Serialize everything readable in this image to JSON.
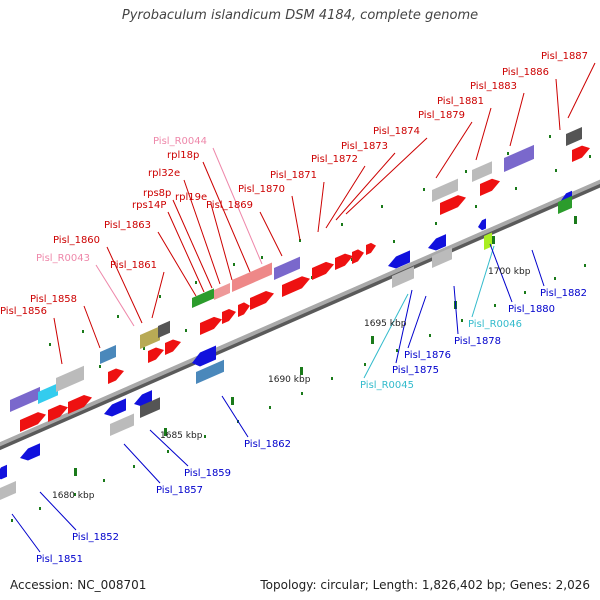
{
  "title": "Pyrobaculum islandicum DSM 4184, complete genome",
  "footer": {
    "accession": "Accession: NC_008701",
    "summary": "Topology: circular; Length: 1,826,402 bp; Genes: 2,026"
  },
  "colors": {
    "backbone": "#8f8f8f",
    "forward_label": "#cc0000",
    "reverse_label": "#0000cc",
    "rna_forward_label": "#ee88aa",
    "rna_reverse_label": "#33bbcc",
    "cds_forward": "#ee1111",
    "cds_reverse": "#1111dd",
    "pseudo_gray": "#bbbbbb",
    "dark_gray": "#555555",
    "tick": "#1a7a1a"
  },
  "scale_ticks": [
    "1680 kbp",
    "1685 kbp",
    "1690 kbp",
    "1695 kbp",
    "1700 kbp"
  ],
  "labels_top": [
    "Pisl_1856",
    "Pisl_1858",
    "Pisl_R0043",
    "Pisl_1860",
    "Pisl_1861",
    "Pisl_1863",
    "rps14P",
    "rps8p",
    "rpl32e",
    "rpl19e",
    "rpl18p",
    "Pisl_R0044",
    "Pisl_1869",
    "Pisl_1870",
    "Pisl_1871",
    "Pisl_1872",
    "Pisl_1873",
    "Pisl_1874",
    "Pisl_1879",
    "Pisl_1881",
    "Pisl_1883",
    "Pisl_1886",
    "Pisl_1887"
  ],
  "labels_bottom": [
    "Pisl_1851",
    "Pisl_1852",
    "Pisl_1857",
    "Pisl_1859",
    "Pisl_1862",
    "Pisl_R0045",
    "Pisl_1875",
    "Pisl_1876",
    "Pisl_1878",
    "Pisl_R0046",
    "Pisl_1880",
    "Pisl_1882"
  ]
}
